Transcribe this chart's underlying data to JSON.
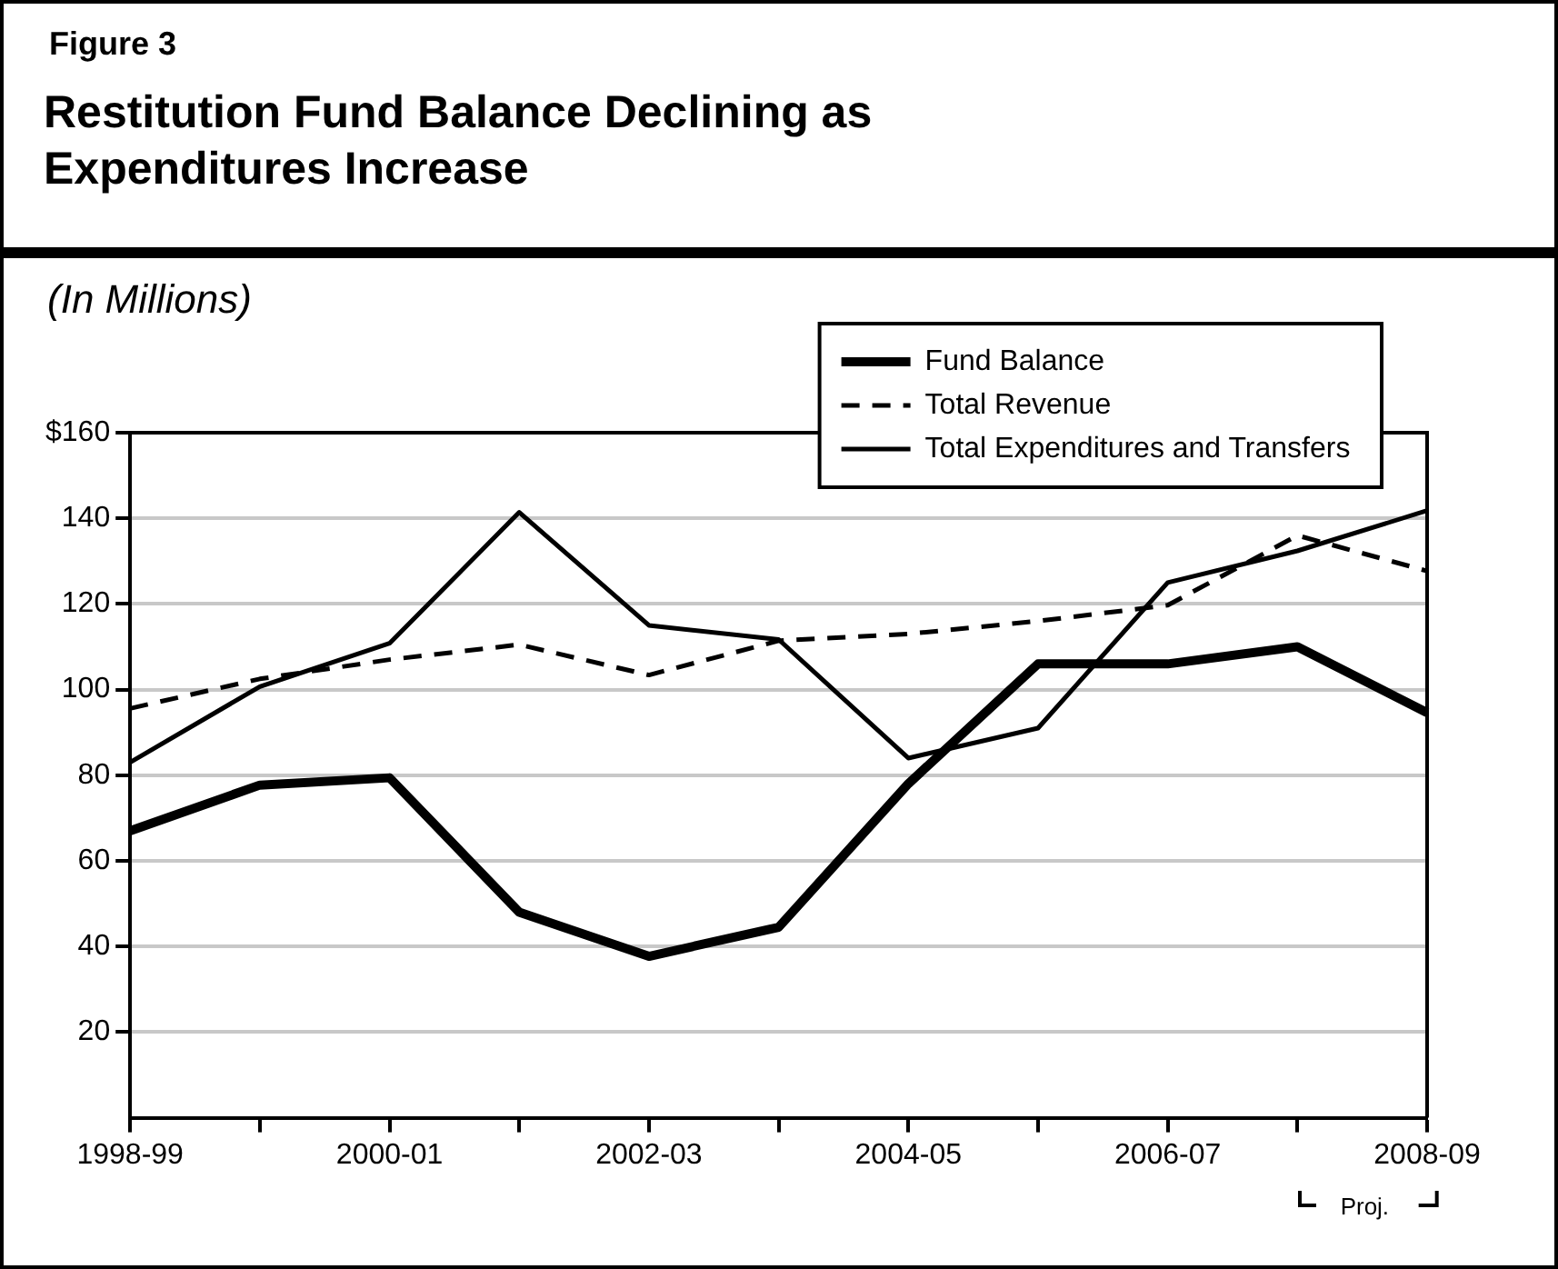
{
  "chart_data": {
    "type": "line",
    "title": "Restitution Fund Balance Declining as Expenditures Increase",
    "subtitle": "Figure 3",
    "ylabel": "(In Millions)",
    "categories": [
      "1998-99",
      null,
      "2000-01",
      null,
      "2002-03",
      null,
      "2004-05",
      null,
      "2006-07",
      null,
      "2008-09"
    ],
    "series": [
      {
        "name": "Fund Balance",
        "color": "#000000",
        "line_style": "solid",
        "values": [
          67,
          77.7,
          79.4,
          48,
          37.7,
          44.5,
          78,
          106,
          106,
          110,
          94.6
        ]
      },
      {
        "name": "Total Revenue",
        "color": "#000000",
        "line_style": "dashed",
        "values": [
          95.6,
          102.5,
          107,
          110.5,
          103.4,
          111.4,
          113,
          116,
          119.7,
          136,
          127.7
        ]
      },
      {
        "name": "Total Expenditures and Transfers",
        "color": "#000000",
        "line_style": "solid",
        "values": [
          83,
          100.7,
          110.8,
          141.4,
          115,
          111.7,
          84,
          91,
          125,
          132.4,
          141.8
        ]
      }
    ],
    "ylim": [
      0,
      160
    ],
    "yticks": [
      20,
      40,
      60,
      80,
      100,
      120,
      140,
      {
        "value": 160,
        "label": "$160"
      }
    ],
    "grid": "y",
    "legend": "top right",
    "marker": "none",
    "annotations": [
      "Proj."
    ]
  }
}
